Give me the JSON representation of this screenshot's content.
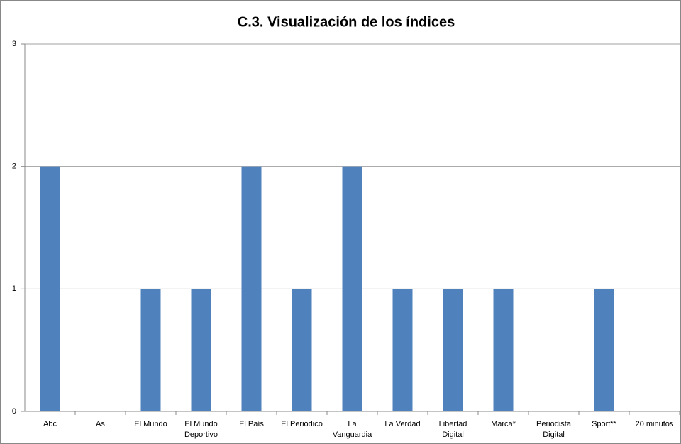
{
  "chart_data": {
    "type": "bar",
    "title": "C.3. Visualización de los índices",
    "categories": [
      "Abc",
      "As",
      "El Mundo",
      "El Mundo Deportivo",
      "El País",
      "El Periódico",
      "La Vanguardia",
      "La Verdad",
      "Libertad Digital",
      "Marca*",
      "Periodista Digital",
      "Sport**",
      "20 minutos"
    ],
    "values": [
      2,
      0,
      1,
      1,
      2,
      1,
      2,
      1,
      1,
      1,
      0,
      1,
      0
    ],
    "color": "#4f81bd",
    "ylim": [
      0,
      3
    ],
    "yticks": [
      0,
      1,
      2,
      3
    ],
    "grid": true
  }
}
